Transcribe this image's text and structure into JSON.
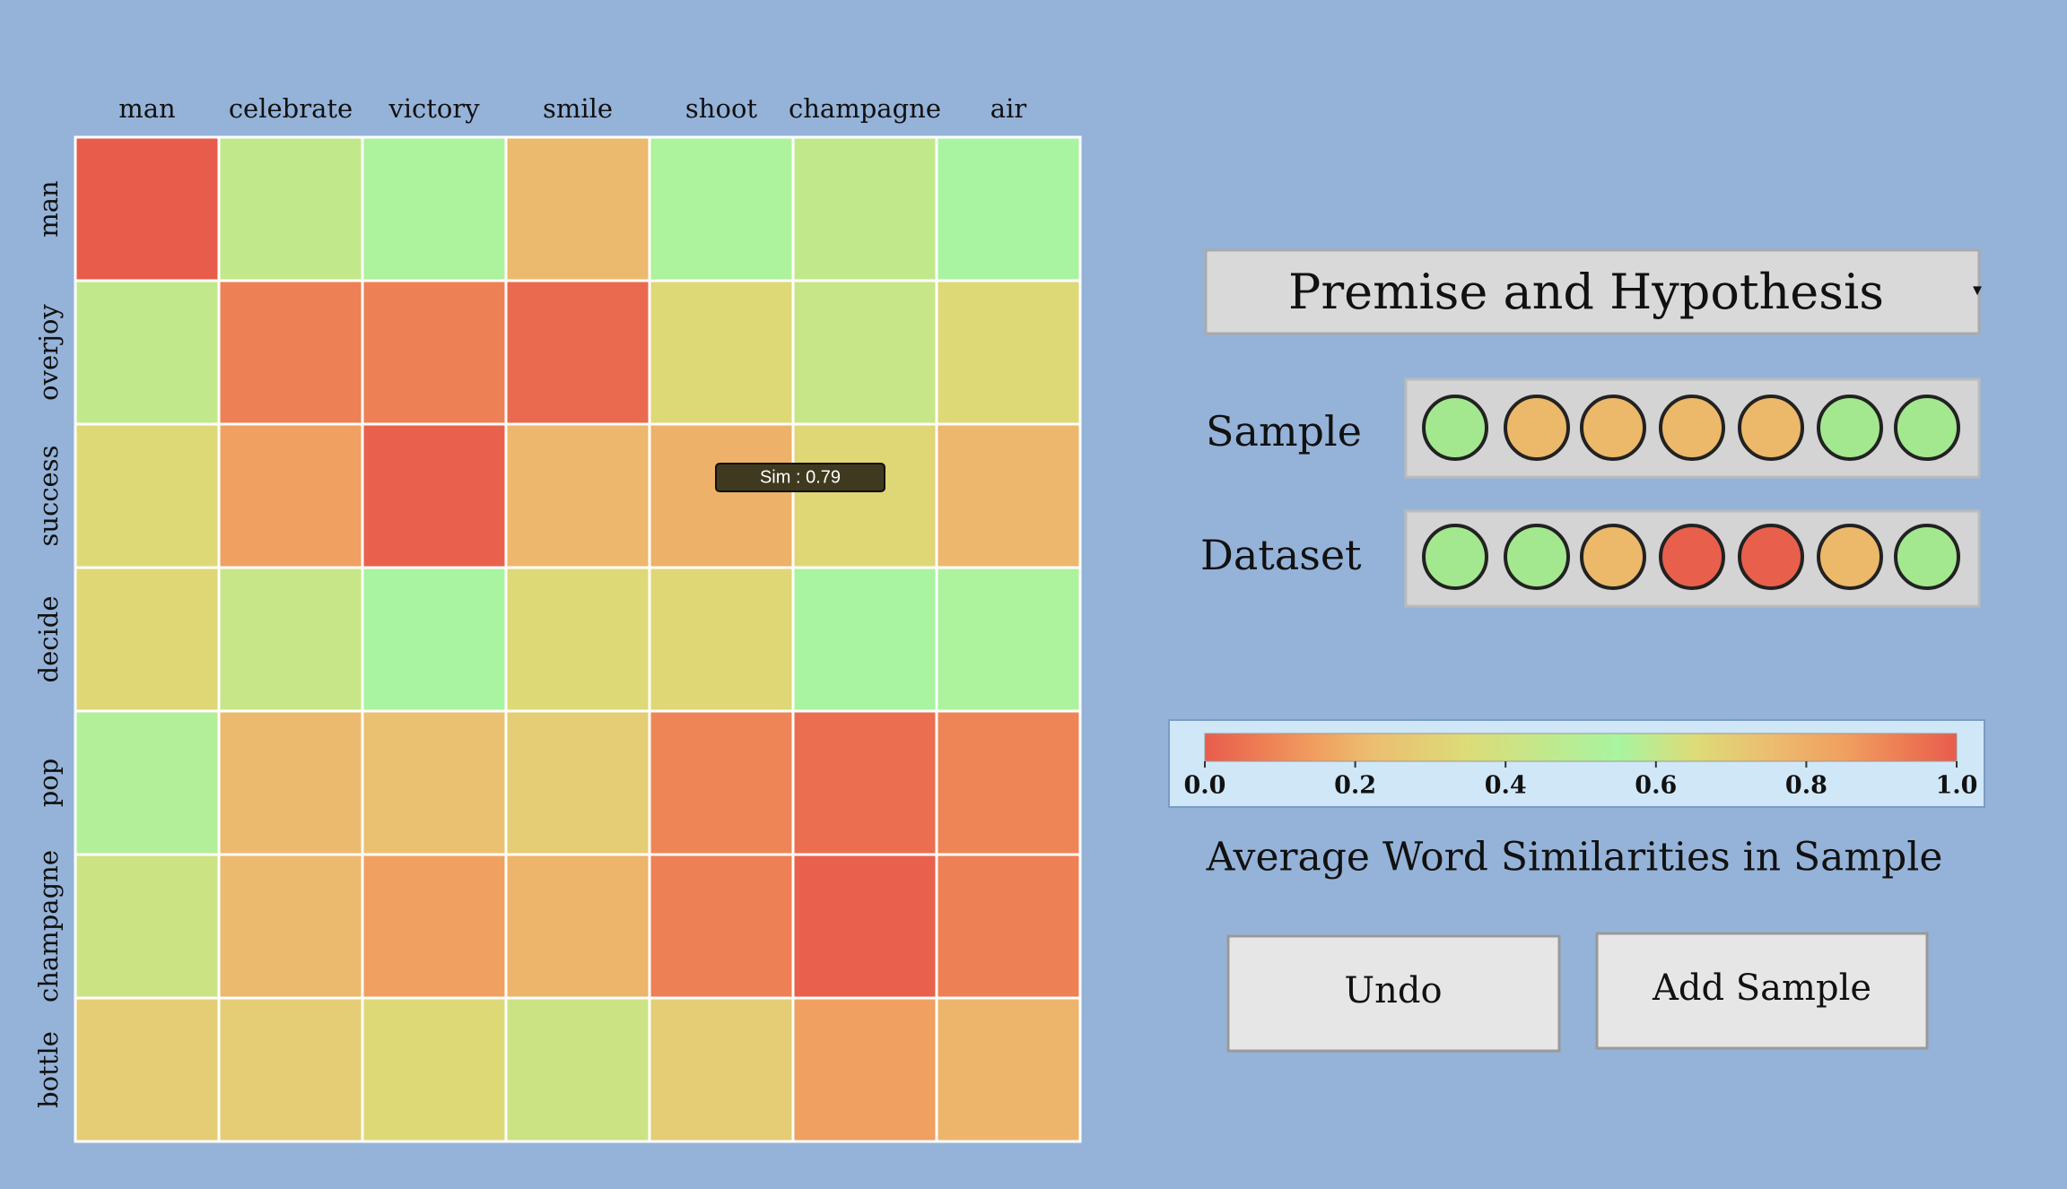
{
  "chart_data": {
    "type": "heatmap",
    "columns": [
      "man",
      "celebrate",
      "victory",
      "smile",
      "shoot",
      "champagne",
      "air"
    ],
    "rows": [
      "man",
      "overjoy",
      "success",
      "decide",
      "pop",
      "champagne",
      "bottle"
    ],
    "values": [
      [
        1.0,
        0.6,
        0.56,
        0.76,
        0.56,
        0.6,
        0.55
      ],
      [
        0.6,
        0.92,
        0.92,
        0.97,
        0.66,
        0.61,
        0.66
      ],
      [
        0.66,
        0.85,
        0.99,
        0.77,
        0.79,
        0.67,
        0.77
      ],
      [
        0.67,
        0.61,
        0.55,
        0.66,
        0.67,
        0.55,
        0.56
      ],
      [
        0.57,
        0.76,
        0.74,
        0.7,
        0.91,
        0.96,
        0.91
      ],
      [
        0.62,
        0.76,
        0.85,
        0.78,
        0.92,
        0.99,
        0.92
      ],
      [
        0.7,
        0.7,
        0.66,
        0.62,
        0.7,
        0.85,
        0.78
      ]
    ],
    "colorscale": [
      [
        0,
        "#e85c4c"
      ],
      [
        0.08,
        "#ee8055"
      ],
      [
        0.15,
        "#f0a060"
      ],
      [
        0.22,
        "#ecbd70"
      ],
      [
        0.35,
        "#dcdc78"
      ],
      [
        0.55,
        "#a8f4a0"
      ],
      [
        0.65,
        "#dcdc78"
      ],
      [
        0.75,
        "#ecbd70"
      ],
      [
        0.85,
        "#f0a060"
      ],
      [
        0.92,
        "#ee8055"
      ],
      [
        1,
        "#e85c4c"
      ]
    ],
    "clim": [
      0,
      1
    ],
    "cticks": [
      {
        "value": 0,
        "label": "0.0"
      },
      0.2,
      0.4,
      0.6,
      0.8,
      {
        "value": 1,
        "label": "1.0"
      }
    ],
    "colorbar_title": "Average Word Similarities in Sample",
    "tooltip": "Sim : 0.79"
  },
  "ui": {
    "dropdown": "Premise and Hypothesis",
    "sample": {
      "label": "Sample",
      "colors": [
        "#a3e88f",
        "#ecb86a",
        "#ecb86a",
        "#ecb86a",
        "#ecb86a",
        "#a3e88f",
        "#a3e88f"
      ]
    },
    "dataset": {
      "label": "Dataset",
      "colors": [
        "#a3e88f",
        "#a3e88f",
        "#ecb86a",
        "#e8604c",
        "#e8604c",
        "#ecb86a",
        "#a3e88f"
      ]
    },
    "buttons": [
      "Undo",
      "Add Sample"
    ]
  }
}
